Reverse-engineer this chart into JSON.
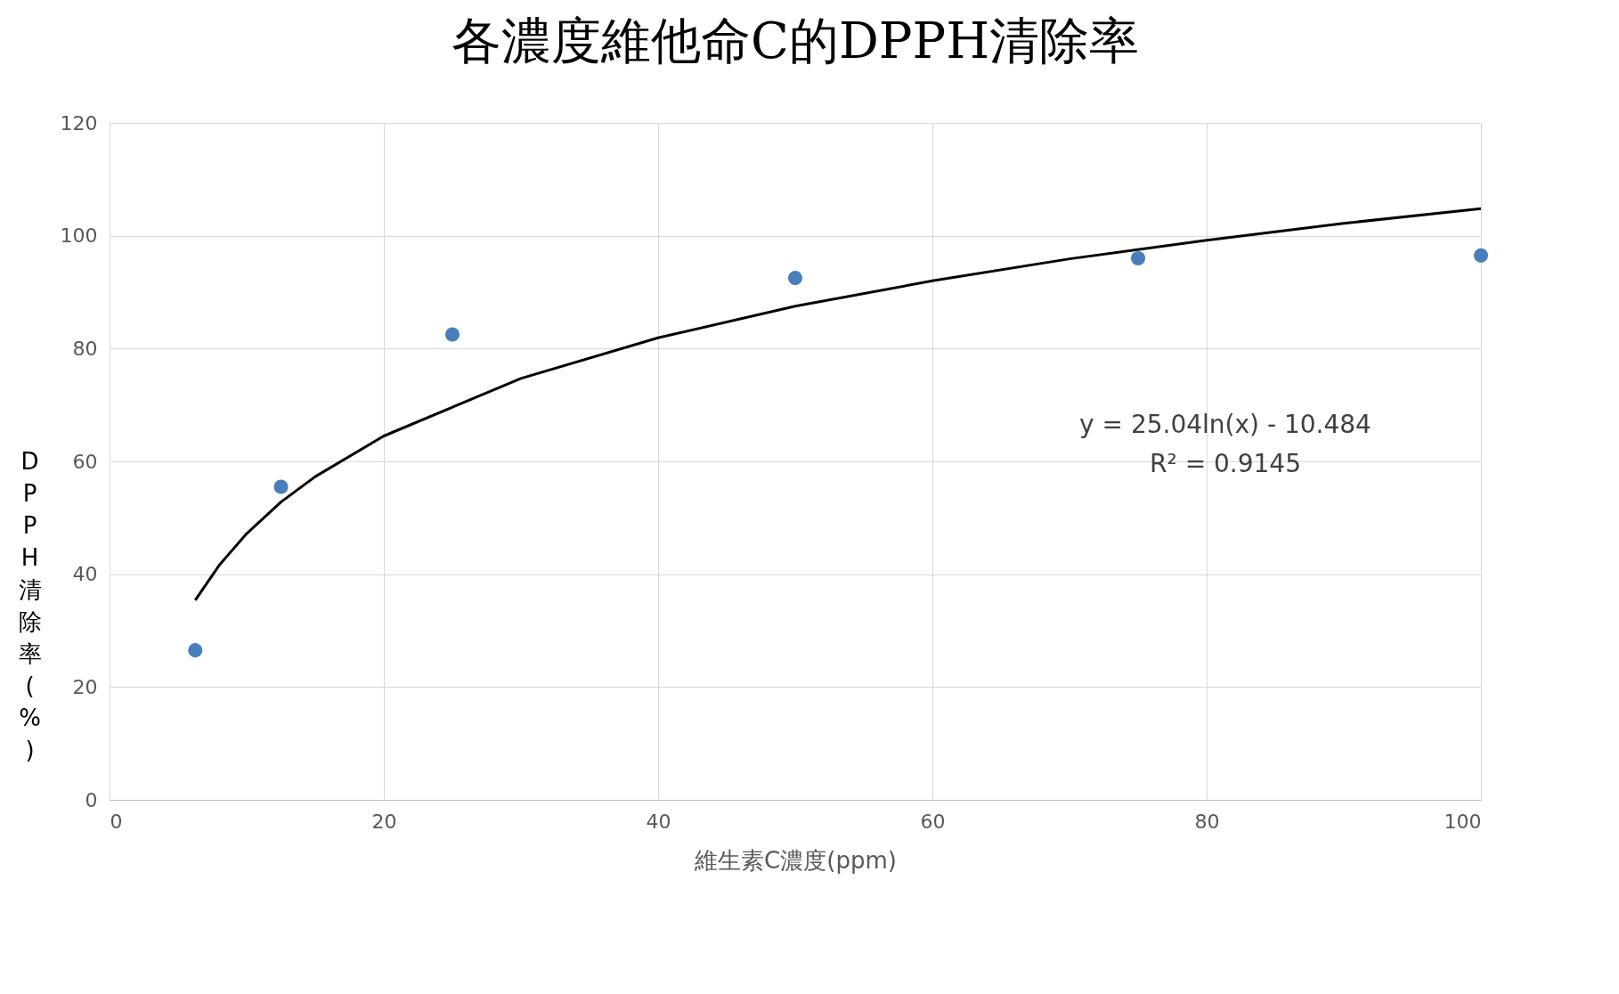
{
  "chart_data": {
    "type": "scatter",
    "title": "各濃度維他命C的DPPH清除率",
    "xlabel": "維生素C濃度(ppm)",
    "ylabel": "DPPH清除率(%)",
    "xlim": [
      0,
      100
    ],
    "xticks": [
      0,
      20,
      40,
      60,
      80,
      100
    ],
    "ylim": [
      0,
      120
    ],
    "yticks": [
      0,
      20,
      40,
      60,
      80,
      100,
      120
    ],
    "grid": true,
    "series": [
      {
        "color": "#4a7ebb",
        "marker": "circle",
        "x": [
          6.25,
          12.5,
          25,
          50,
          75,
          100
        ],
        "values": [
          26.5,
          55.5,
          82.5,
          92.5,
          96,
          96.5
        ]
      },
      {
        "type": "line",
        "color": "#000000",
        "line_style": "solid",
        "x": [
          6.25,
          8,
          10,
          12.5,
          15,
          20,
          30,
          40,
          50,
          60,
          70,
          80,
          90,
          100
        ],
        "values": [
          35.4,
          41.6,
          47.2,
          52.8,
          57.3,
          64.5,
          74.7,
          81.9,
          87.5,
          92,
          95.9,
          99.2,
          102.2,
          104.8
        ]
      }
    ],
    "annotations": [
      "y = 25.04ln(x) - 10.484",
      "R² = 0.9145"
    ]
  }
}
